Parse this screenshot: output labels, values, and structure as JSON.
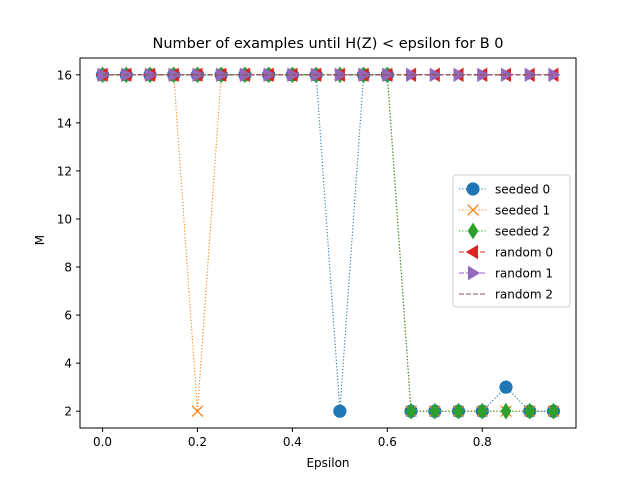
{
  "chart_data": {
    "type": "line",
    "title": "Number of examples until H(Z) < epsilon for B 0",
    "xlabel": "Epsilon",
    "ylabel": "M",
    "xlim": [
      -0.0475,
      0.9975
    ],
    "ylim": [
      1.3,
      16.7
    ],
    "grid": false,
    "legend_position": "center-right",
    "x": [
      0.0,
      0.05,
      0.1,
      0.15,
      0.2,
      0.25,
      0.3,
      0.35,
      0.4,
      0.45,
      0.5,
      0.55,
      0.6,
      0.65,
      0.7,
      0.75,
      0.8,
      0.85,
      0.9,
      0.95
    ],
    "x_ticks": [
      0.0,
      0.2,
      0.4,
      0.6,
      0.8
    ],
    "x_tick_labels": [
      "0.0",
      "0.2",
      "0.4",
      "0.6",
      "0.8"
    ],
    "y_ticks": [
      2,
      4,
      6,
      8,
      10,
      12,
      14,
      16
    ],
    "y_tick_labels": [
      "2",
      "4",
      "6",
      "8",
      "10",
      "12",
      "14",
      "16"
    ],
    "series": [
      {
        "name": "seeded 0",
        "color": "#1f77b4",
        "linestyle": "dotted",
        "marker": "circle",
        "values": [
          16,
          16,
          16,
          16,
          16,
          16,
          16,
          16,
          16,
          16,
          2,
          16,
          16,
          2,
          2,
          2,
          2,
          3,
          2,
          2
        ]
      },
      {
        "name": "seeded 1",
        "color": "#ff7f0e",
        "linestyle": "dotted",
        "marker": "x",
        "values": [
          16,
          16,
          16,
          16,
          2,
          16,
          16,
          16,
          16,
          16,
          16,
          16,
          16,
          2,
          2,
          2,
          2,
          2,
          2,
          2
        ]
      },
      {
        "name": "seeded 2",
        "color": "#2ca02c",
        "linestyle": "dotted",
        "marker": "thin-diamond",
        "values": [
          16,
          16,
          16,
          16,
          16,
          16,
          16,
          16,
          16,
          16,
          16,
          16,
          16,
          2,
          2,
          2,
          2,
          2,
          2,
          2
        ]
      },
      {
        "name": "random 0",
        "color": "#d62728",
        "linestyle": "dashed",
        "marker": "triangle-left",
        "values": [
          16,
          16,
          16,
          16,
          16,
          16,
          16,
          16,
          16,
          16,
          16,
          16,
          16,
          16,
          16,
          16,
          16,
          16,
          16,
          16
        ]
      },
      {
        "name": "random 1",
        "color": "#9467bd",
        "linestyle": "dashed",
        "marker": "triangle-right",
        "values": [
          16,
          16,
          16,
          16,
          16,
          16,
          16,
          16,
          16,
          16,
          16,
          16,
          16,
          16,
          16,
          16,
          16,
          16,
          16,
          16
        ]
      },
      {
        "name": "random 2",
        "color": "#8c564b",
        "linestyle": "dashed",
        "marker": "none",
        "values": [
          16,
          16,
          16,
          16,
          16,
          16,
          16,
          16,
          16,
          16,
          16,
          16,
          16,
          16,
          16,
          16,
          16,
          16,
          16,
          16
        ]
      }
    ]
  }
}
